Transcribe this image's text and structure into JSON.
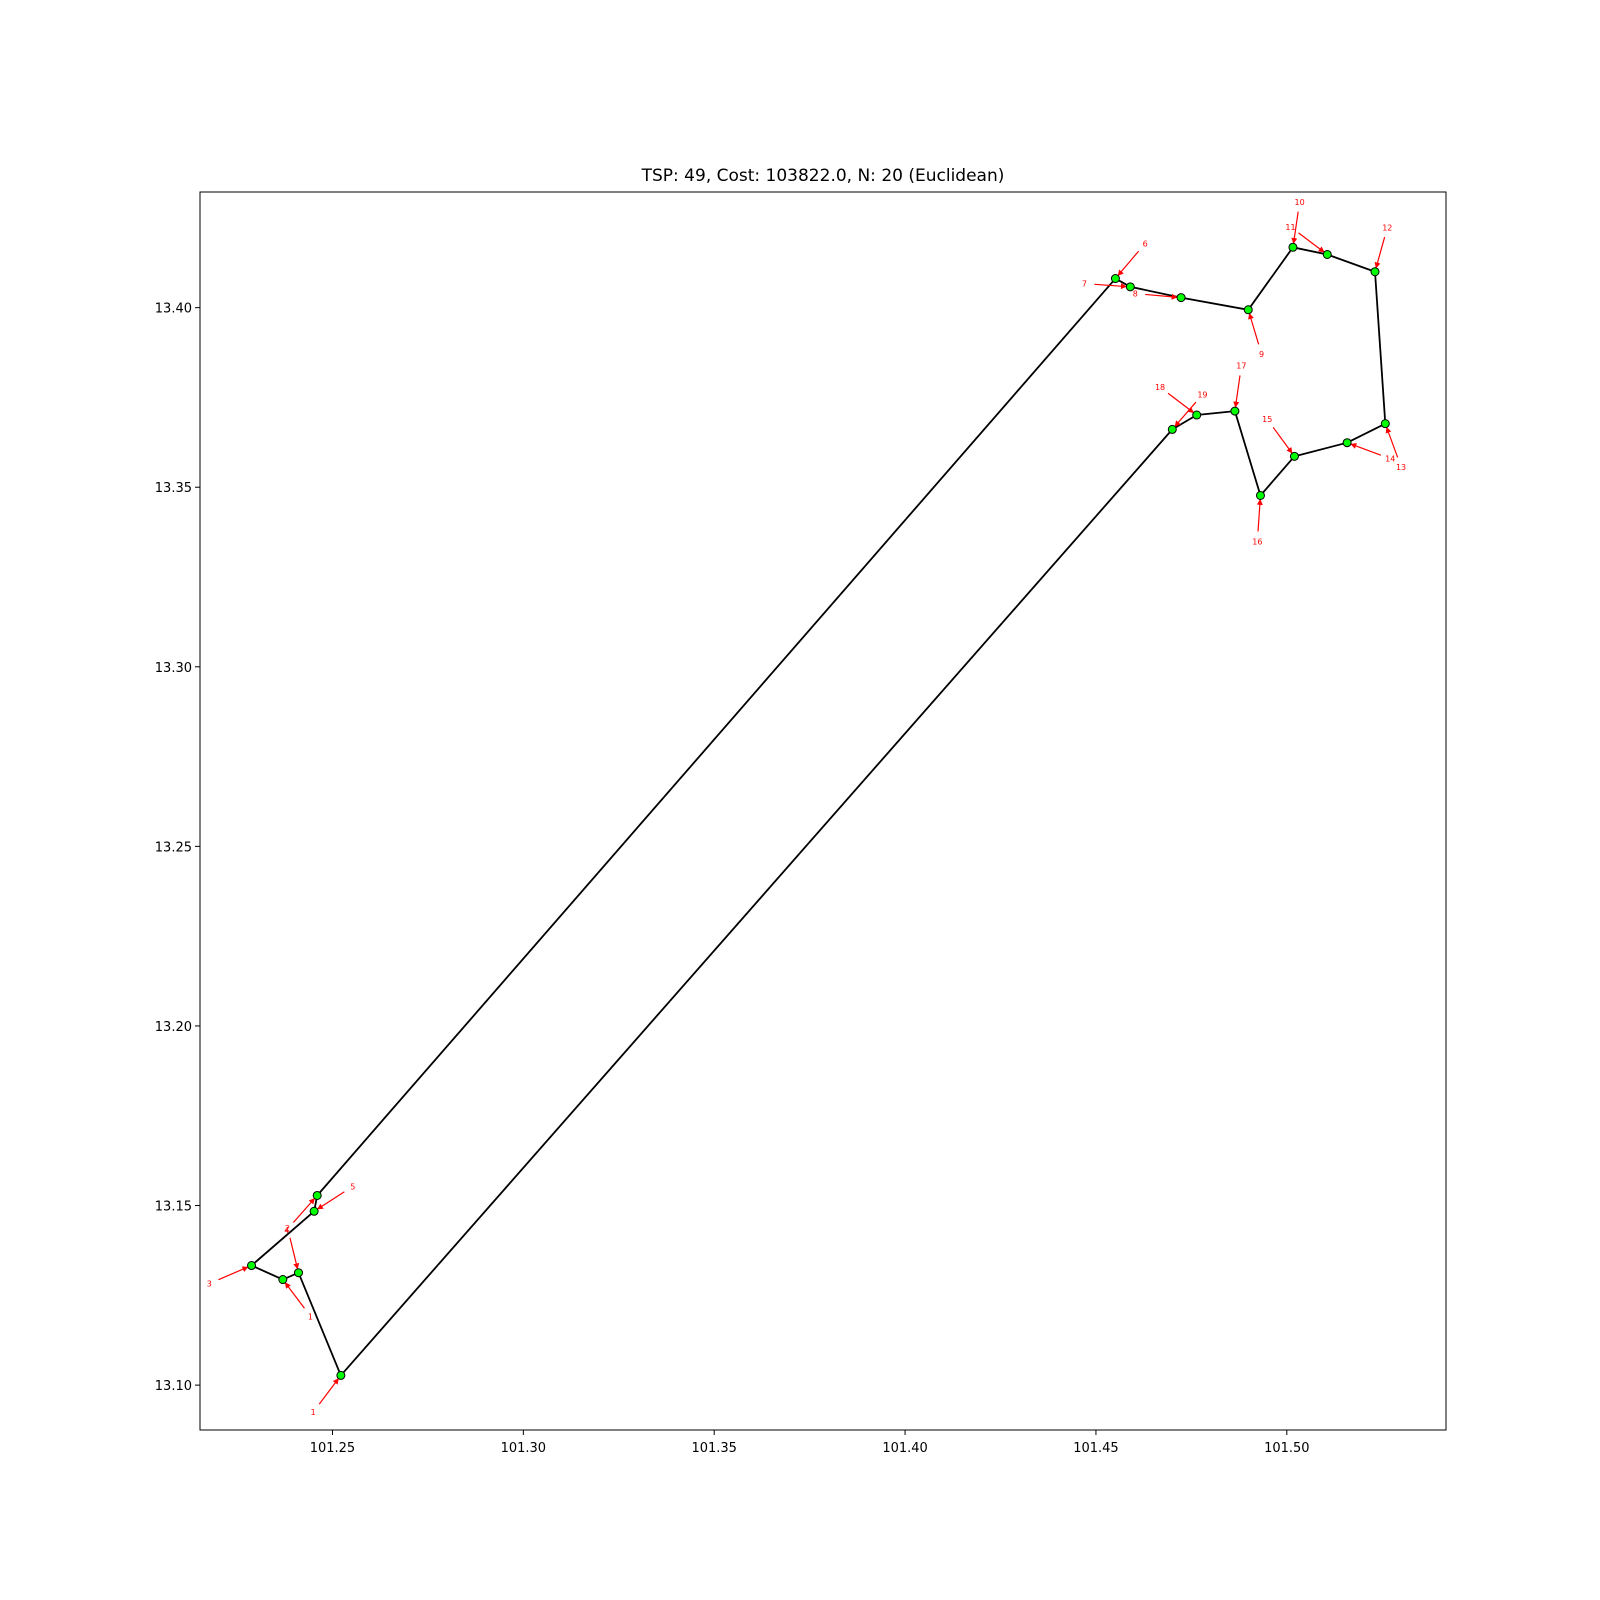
{
  "chart_data": {
    "type": "scatter",
    "title": "TSP: 49, Cost: 103822.0, N: 20 (Euclidean)",
    "xlabel": "",
    "ylabel": "",
    "xlim": [
      101.2153,
      101.5417
    ],
    "ylim": [
      13.0875,
      13.4322
    ],
    "x_ticks": [
      "101.25",
      "101.30",
      "101.35",
      "101.40",
      "101.45",
      "101.50"
    ],
    "x_tick_values": [
      101.25,
      101.3,
      101.35,
      101.4,
      101.45,
      101.5
    ],
    "y_ticks": [
      "13.10",
      "13.15",
      "13.20",
      "13.25",
      "13.30",
      "13.35",
      "13.40"
    ],
    "y_tick_values": [
      13.1,
      13.15,
      13.2,
      13.25,
      13.3,
      13.35,
      13.4
    ],
    "grid": false,
    "closed_tour": true,
    "points": [
      {
        "label": "1",
        "x": 101.2522,
        "y": 13.1027
      },
      {
        "label": "2",
        "x": 101.2411,
        "y": 13.1313
      },
      {
        "label": "1",
        "x": 101.237,
        "y": 13.1294
      },
      {
        "label": "3",
        "x": 101.2288,
        "y": 13.1333
      },
      {
        "label": "5",
        "x": 101.2452,
        "y": 13.1484
      },
      {
        "label": "4",
        "x": 101.246,
        "y": 13.1528
      },
      {
        "label": "6",
        "x": 101.4551,
        "y": 13.4081
      },
      {
        "label": "7",
        "x": 101.459,
        "y": 13.4058
      },
      {
        "label": "8",
        "x": 101.4723,
        "y": 13.4028
      },
      {
        "label": "9",
        "x": 101.4899,
        "y": 13.3994
      },
      {
        "label": "10",
        "x": 101.5016,
        "y": 13.4168
      },
      {
        "label": "11",
        "x": 101.5106,
        "y": 13.4148
      },
      {
        "label": "12",
        "x": 101.5231,
        "y": 13.41
      },
      {
        "label": "13",
        "x": 101.5258,
        "y": 13.3677
      },
      {
        "label": "14",
        "x": 101.5158,
        "y": 13.3624
      },
      {
        "label": "15",
        "x": 101.502,
        "y": 13.3586
      },
      {
        "label": "16",
        "x": 101.4931,
        "y": 13.3477
      },
      {
        "label": "17",
        "x": 101.4864,
        "y": 13.3712
      },
      {
        "label": "18",
        "x": 101.4764,
        "y": 13.3701
      },
      {
        "label": "19",
        "x": 101.47,
        "y": 13.3661
      }
    ],
    "point_color": "#00ff00",
    "point_edge_color": "#000000",
    "path_color": "#000000",
    "label_color": "#ff0000"
  }
}
